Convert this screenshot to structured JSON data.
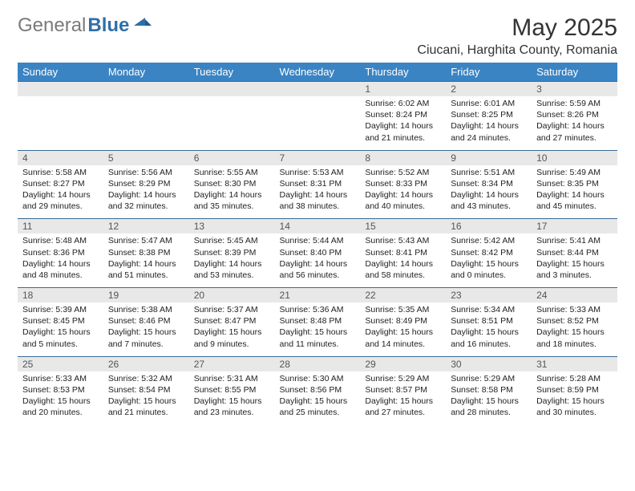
{
  "logo": {
    "gray": "General",
    "blue": "Blue"
  },
  "title": "May 2025",
  "location": "Ciucani, Harghita County, Romania",
  "colors": {
    "header_bg": "#3a84c4",
    "header_text": "#ffffff",
    "num_row_bg": "#e8e8e8",
    "num_row_border": "#3a6a95",
    "logo_gray": "#7a7a7a",
    "logo_blue": "#2f6fa8",
    "text": "#222222"
  },
  "dayNames": [
    "Sunday",
    "Monday",
    "Tuesday",
    "Wednesday",
    "Thursday",
    "Friday",
    "Saturday"
  ],
  "weeks": [
    {
      "nums": [
        "",
        "",
        "",
        "",
        "1",
        "2",
        "3"
      ],
      "cells": [
        [],
        [],
        [],
        [],
        [
          "Sunrise: 6:02 AM",
          "Sunset: 8:24 PM",
          "Daylight: 14 hours",
          "and 21 minutes."
        ],
        [
          "Sunrise: 6:01 AM",
          "Sunset: 8:25 PM",
          "Daylight: 14 hours",
          "and 24 minutes."
        ],
        [
          "Sunrise: 5:59 AM",
          "Sunset: 8:26 PM",
          "Daylight: 14 hours",
          "and 27 minutes."
        ]
      ]
    },
    {
      "nums": [
        "4",
        "5",
        "6",
        "7",
        "8",
        "9",
        "10"
      ],
      "cells": [
        [
          "Sunrise: 5:58 AM",
          "Sunset: 8:27 PM",
          "Daylight: 14 hours",
          "and 29 minutes."
        ],
        [
          "Sunrise: 5:56 AM",
          "Sunset: 8:29 PM",
          "Daylight: 14 hours",
          "and 32 minutes."
        ],
        [
          "Sunrise: 5:55 AM",
          "Sunset: 8:30 PM",
          "Daylight: 14 hours",
          "and 35 minutes."
        ],
        [
          "Sunrise: 5:53 AM",
          "Sunset: 8:31 PM",
          "Daylight: 14 hours",
          "and 38 minutes."
        ],
        [
          "Sunrise: 5:52 AM",
          "Sunset: 8:33 PM",
          "Daylight: 14 hours",
          "and 40 minutes."
        ],
        [
          "Sunrise: 5:51 AM",
          "Sunset: 8:34 PM",
          "Daylight: 14 hours",
          "and 43 minutes."
        ],
        [
          "Sunrise: 5:49 AM",
          "Sunset: 8:35 PM",
          "Daylight: 14 hours",
          "and 45 minutes."
        ]
      ]
    },
    {
      "nums": [
        "11",
        "12",
        "13",
        "14",
        "15",
        "16",
        "17"
      ],
      "cells": [
        [
          "Sunrise: 5:48 AM",
          "Sunset: 8:36 PM",
          "Daylight: 14 hours",
          "and 48 minutes."
        ],
        [
          "Sunrise: 5:47 AM",
          "Sunset: 8:38 PM",
          "Daylight: 14 hours",
          "and 51 minutes."
        ],
        [
          "Sunrise: 5:45 AM",
          "Sunset: 8:39 PM",
          "Daylight: 14 hours",
          "and 53 minutes."
        ],
        [
          "Sunrise: 5:44 AM",
          "Sunset: 8:40 PM",
          "Daylight: 14 hours",
          "and 56 minutes."
        ],
        [
          "Sunrise: 5:43 AM",
          "Sunset: 8:41 PM",
          "Daylight: 14 hours",
          "and 58 minutes."
        ],
        [
          "Sunrise: 5:42 AM",
          "Sunset: 8:42 PM",
          "Daylight: 15 hours",
          "and 0 minutes."
        ],
        [
          "Sunrise: 5:41 AM",
          "Sunset: 8:44 PM",
          "Daylight: 15 hours",
          "and 3 minutes."
        ]
      ]
    },
    {
      "nums": [
        "18",
        "19",
        "20",
        "21",
        "22",
        "23",
        "24"
      ],
      "cells": [
        [
          "Sunrise: 5:39 AM",
          "Sunset: 8:45 PM",
          "Daylight: 15 hours",
          "and 5 minutes."
        ],
        [
          "Sunrise: 5:38 AM",
          "Sunset: 8:46 PM",
          "Daylight: 15 hours",
          "and 7 minutes."
        ],
        [
          "Sunrise: 5:37 AM",
          "Sunset: 8:47 PM",
          "Daylight: 15 hours",
          "and 9 minutes."
        ],
        [
          "Sunrise: 5:36 AM",
          "Sunset: 8:48 PM",
          "Daylight: 15 hours",
          "and 11 minutes."
        ],
        [
          "Sunrise: 5:35 AM",
          "Sunset: 8:49 PM",
          "Daylight: 15 hours",
          "and 14 minutes."
        ],
        [
          "Sunrise: 5:34 AM",
          "Sunset: 8:51 PM",
          "Daylight: 15 hours",
          "and 16 minutes."
        ],
        [
          "Sunrise: 5:33 AM",
          "Sunset: 8:52 PM",
          "Daylight: 15 hours",
          "and 18 minutes."
        ]
      ]
    },
    {
      "nums": [
        "25",
        "26",
        "27",
        "28",
        "29",
        "30",
        "31"
      ],
      "cells": [
        [
          "Sunrise: 5:33 AM",
          "Sunset: 8:53 PM",
          "Daylight: 15 hours",
          "and 20 minutes."
        ],
        [
          "Sunrise: 5:32 AM",
          "Sunset: 8:54 PM",
          "Daylight: 15 hours",
          "and 21 minutes."
        ],
        [
          "Sunrise: 5:31 AM",
          "Sunset: 8:55 PM",
          "Daylight: 15 hours",
          "and 23 minutes."
        ],
        [
          "Sunrise: 5:30 AM",
          "Sunset: 8:56 PM",
          "Daylight: 15 hours",
          "and 25 minutes."
        ],
        [
          "Sunrise: 5:29 AM",
          "Sunset: 8:57 PM",
          "Daylight: 15 hours",
          "and 27 minutes."
        ],
        [
          "Sunrise: 5:29 AM",
          "Sunset: 8:58 PM",
          "Daylight: 15 hours",
          "and 28 minutes."
        ],
        [
          "Sunrise: 5:28 AM",
          "Sunset: 8:59 PM",
          "Daylight: 15 hours",
          "and 30 minutes."
        ]
      ]
    }
  ]
}
